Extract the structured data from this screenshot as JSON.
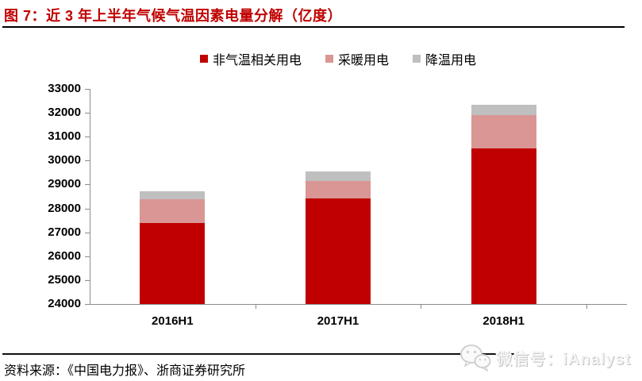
{
  "page": {
    "title": "图 7：近 3 年上半年气候气温因素电量分解（亿度）",
    "source_note": "资料来源：《中国电力报》、浙商证券研究所",
    "watermark": {
      "icon": "wechat-icon",
      "text": "微信号：iAnalyst"
    }
  },
  "colors": {
    "title_red": "#C00000",
    "axis_gray": "#8C8C8C",
    "text_black": "#000000",
    "rule_black": "#111111",
    "watermark_gray": "#d9d9d9"
  },
  "chart_data": {
    "type": "bar",
    "stacked": true,
    "title": "近 3 年上半年气候气温因素电量分解（亿度）",
    "categories": [
      "2016H1",
      "2017H1",
      "2018H1"
    ],
    "series": [
      {
        "name": "非气温相关用电",
        "color": "#C00000",
        "values": [
          27380,
          28420,
          30500
        ],
        "absolute": true
      },
      {
        "name": "采暖用电",
        "color": "#D99694",
        "values": [
          1020,
          740,
          1400
        ]
      },
      {
        "name": "降温用电",
        "color": "#BFBFBF",
        "values": [
          320,
          390,
          420
        ]
      }
    ],
    "stack_tops": {
      "2016H1": {
        "非气温相关用电": 27380,
        "采暖用电": 28400,
        "降温用电": 28720
      },
      "2017H1": {
        "非气温相关用电": 28420,
        "采暖用电": 29160,
        "降温用电": 29550
      },
      "2018H1": {
        "非气温相关用电": 30500,
        "采暖用电": 31900,
        "降温用电": 32320
      }
    },
    "xlabel": "",
    "ylabel": "",
    "ylim": [
      24000,
      33000
    ],
    "yticks": [
      24000,
      25000,
      26000,
      27000,
      28000,
      29000,
      30000,
      31000,
      32000,
      33000
    ],
    "grid": false,
    "legend_position": "top",
    "note": "y-axis starts at 24000, so first (red) series is truncated at the axis minimum"
  }
}
